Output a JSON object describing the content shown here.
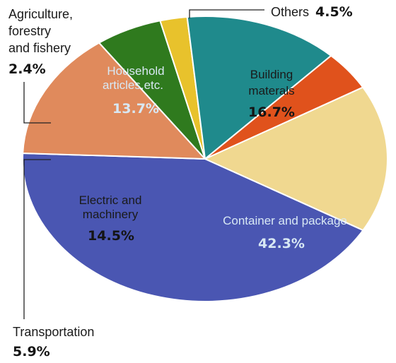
{
  "chart_data": {
    "type": "pie",
    "title": "",
    "slices": [
      {
        "label_lines": [
          "Container and package"
        ],
        "value": 42.3,
        "value_label": "42.3%",
        "color": "#4a56b2"
      },
      {
        "label_lines": [
          "Electric and",
          "machinery"
        ],
        "value": 14.5,
        "value_label": "14.5%",
        "color": "#e08a5c"
      },
      {
        "label_lines": [
          "Transportation"
        ],
        "value": 5.9,
        "value_label": "5.9%",
        "color": "#2f7a1e"
      },
      {
        "label_lines": [
          "Agriculture,",
          "forestry",
          "and fishery"
        ],
        "value": 2.4,
        "value_label": "2.4%",
        "color": "#e8c22c"
      },
      {
        "label_lines": [
          "Household",
          "articles,etc."
        ],
        "value": 13.7,
        "value_label": "13.7%",
        "color": "#1f8a8c"
      },
      {
        "label_lines": [
          "Others"
        ],
        "value": 4.5,
        "value_label": "4.5%",
        "color": "#e0521c"
      },
      {
        "label_lines": [
          "Building",
          "materals"
        ],
        "value": 16.7,
        "value_label": "16.7%",
        "color": "#f0d890"
      }
    ],
    "legend": "none"
  }
}
